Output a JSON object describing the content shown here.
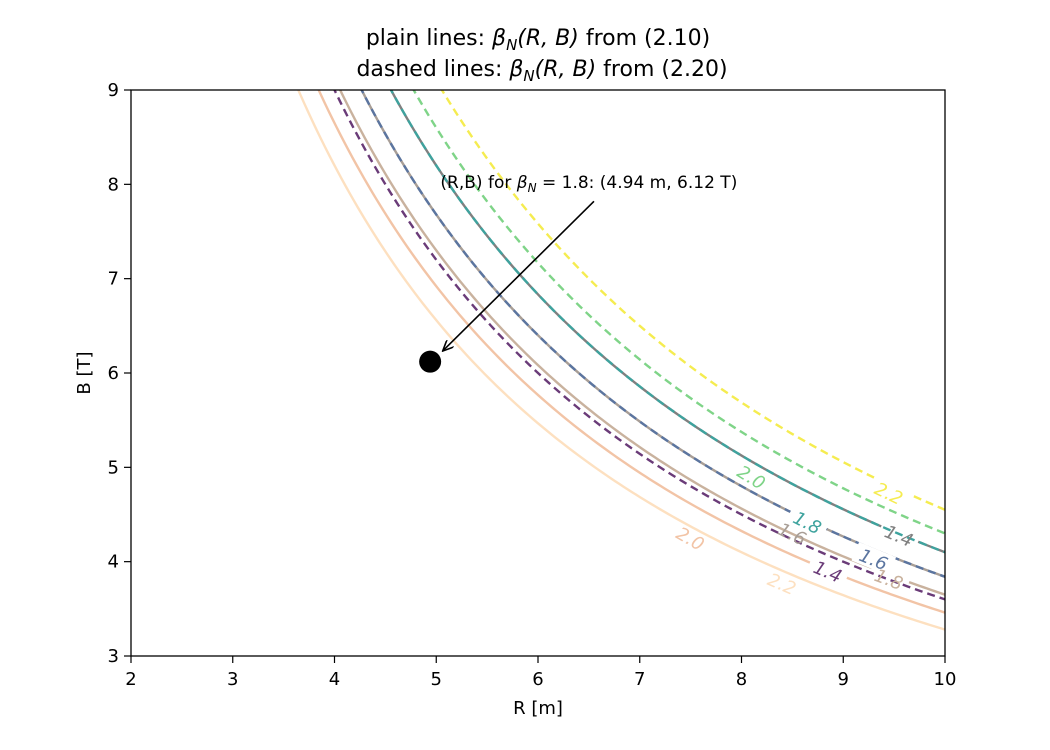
{
  "chart_data": {
    "type": "line",
    "title_line1": "plain lines: βN(R,B) from (2.10)",
    "title_line2": "dashed lines: βN(R,B) from (2.20)",
    "title_parts": {
      "l1_prefix": "plain lines: ",
      "l1_beta": "β",
      "l1_sub": "N",
      "l1_args": "(R, B)",
      "l1_suffix": " from (2.10)",
      "l2_prefix": "dashed lines: ",
      "l2_beta": "β",
      "l2_sub": "N",
      "l2_args": "(R, B)",
      "l2_suffix": " from (2.20)"
    },
    "xlabel": "R [m]",
    "ylabel": "B [T]",
    "xlim": [
      2,
      10
    ],
    "ylim": [
      3,
      9
    ],
    "xticks": [
      2,
      3,
      4,
      5,
      6,
      7,
      8,
      9,
      10
    ],
    "yticks": [
      3,
      4,
      5,
      6,
      7,
      8,
      9
    ],
    "grid": false,
    "series": [
      {
        "name": "1.4",
        "style": "solid",
        "color": "#808080",
        "k": 41.0,
        "label": "1.4",
        "label_at": [
          9.55,
          4.28
        ]
      },
      {
        "name": "1.6",
        "style": "solid",
        "color": "#a89e96",
        "k": 38.4,
        "label": "1.6",
        "label_at": [
          8.5,
          4.3
        ]
      },
      {
        "name": "1.8",
        "style": "solid",
        "color": "#c9b29e",
        "k": 36.5,
        "label": "1.8",
        "label_at": [
          9.45,
          3.82
        ]
      },
      {
        "name": "2.0",
        "style": "solid",
        "color": "#f2c4a6",
        "k": 34.6,
        "label": "2.0",
        "label_at": [
          7.5,
          4.25
        ]
      },
      {
        "name": "2.2",
        "style": "solid",
        "color": "#fde0c0",
        "k": 32.8,
        "label": "2.2",
        "label_at": [
          8.4,
          3.77
        ]
      },
      {
        "name": "1.4",
        "style": "dashed",
        "color": "#6a3b78",
        "k": 36.0,
        "label": "1.4",
        "label_at": [
          8.85,
          3.9
        ]
      },
      {
        "name": "1.6",
        "style": "dashed",
        "color": "#5b75a0",
        "k": 38.4,
        "label": "1.6",
        "label_at": [
          9.3,
          4.03
        ]
      },
      {
        "name": "1.8",
        "style": "dashed",
        "color": "#3ea39e",
        "k": 41.0,
        "label": "1.8",
        "label_at": [
          8.65,
          4.42
        ]
      },
      {
        "name": "2.0",
        "style": "dashed",
        "color": "#7fd488",
        "k": 43.0,
        "label": "2.0",
        "label_at": [
          8.1,
          4.9
        ]
      },
      {
        "name": "2.2",
        "style": "dashed",
        "color": "#f5ec50",
        "k": 45.5,
        "label": "2.2",
        "label_at": [
          9.45,
          4.73
        ]
      }
    ],
    "marker": {
      "x": 4.94,
      "y": 6.12,
      "color": "#000000"
    },
    "annotation": {
      "prefix": "(R,B) for ",
      "beta": "β",
      "sub": "N",
      "eq": " = 1.8: (4.94 m, 6.12 T)",
      "text_at": [
        6.5,
        7.96
      ],
      "arrow_from": [
        6.55,
        7.82
      ],
      "arrow_to": [
        5.07,
        6.24
      ]
    }
  }
}
